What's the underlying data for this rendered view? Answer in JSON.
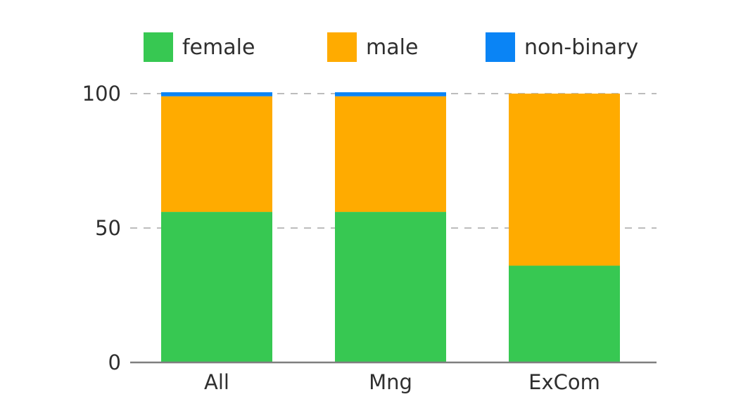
{
  "chart_data": {
    "type": "bar",
    "stacked": true,
    "categories": [
      "All",
      "Mng",
      "ExCom"
    ],
    "series": [
      {
        "name": "female",
        "color": "#37c852",
        "values": [
          56,
          56,
          36
        ]
      },
      {
        "name": "male",
        "color": "#ffab00",
        "values": [
          43,
          43,
          64
        ]
      },
      {
        "name": "non-binary",
        "color": "#0a84f5",
        "values": [
          1.5,
          1.5,
          0
        ]
      }
    ],
    "ylim": [
      0,
      100
    ],
    "yticks": [
      0,
      50,
      100
    ],
    "ytick_labels": [
      "0",
      "50",
      "100"
    ],
    "grid": true,
    "legend_position": "top"
  }
}
